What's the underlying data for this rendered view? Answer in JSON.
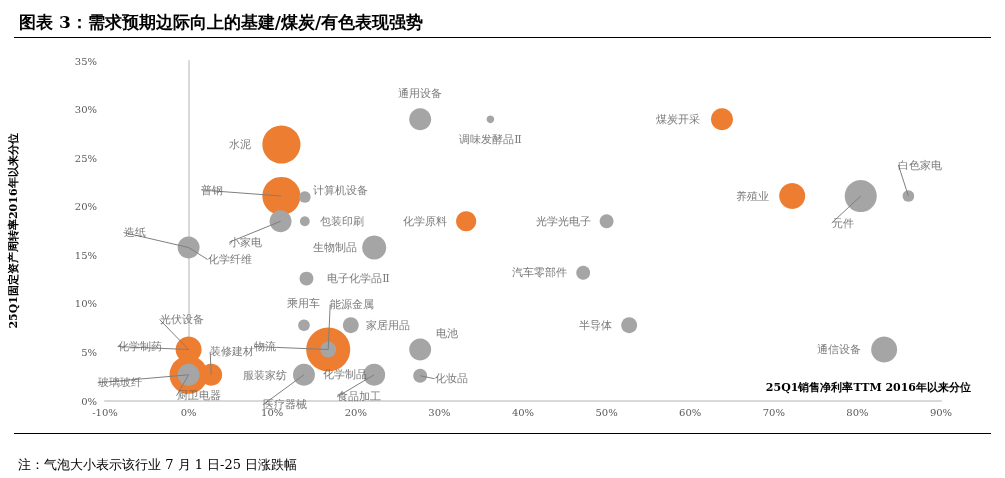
{
  "chart_data": {
    "type": "bubble",
    "title": "图表 3：需求预期边际向上的基建/煤炭/有色表现强势",
    "xlabel": "25Q1销售净利率TTM 2016年以来分位",
    "ylabel": "25Q1固定资产周转率2016年以来分位",
    "xlim": [
      -10,
      90
    ],
    "xticks": [
      {
        "value": -10,
        "label": "-10%"
      },
      {
        "value": 0,
        "label": "0%"
      },
      {
        "value": 10,
        "label": "10%"
      },
      {
        "value": 20,
        "label": "20%"
      },
      {
        "value": 30,
        "label": "30%"
      },
      {
        "value": 40,
        "label": "40%"
      },
      {
        "value": 50,
        "label": "50%"
      },
      {
        "value": 60,
        "label": "60%"
      },
      {
        "value": 70,
        "label": "70%"
      },
      {
        "value": 80,
        "label": "80%"
      },
      {
        "value": 90,
        "label": "90%"
      }
    ],
    "ylim": [
      0,
      35
    ],
    "yticks": [
      {
        "value": 0,
        "label": "0%"
      },
      {
        "value": 5,
        "label": "5%"
      },
      {
        "value": 10,
        "label": "10%"
      },
      {
        "value": 15,
        "label": "15%"
      },
      {
        "value": 20,
        "label": "20%"
      },
      {
        "value": 25,
        "label": "25%"
      },
      {
        "value": 30,
        "label": "30%"
      },
      {
        "value": 35,
        "label": "35%"
      }
    ],
    "series": [
      {
        "color": "#ed7d31",
        "x": [
          11.1,
          11.1,
          16.7,
          33.2,
          63.8,
          72.2,
          0,
          2.7,
          0
        ],
        "values": [
          26.4,
          21.1,
          5.3,
          18.5,
          29.0,
          21.1,
          5.3,
          2.7,
          2.7
        ],
        "sizes": [
          0.75,
          0.75,
          1,
          0.21,
          0.25,
          0.35,
          0.35,
          0.25,
          0.75
        ]
      },
      {
        "color": "#a5a5a5",
        "x": [
          11.0,
          13.9,
          13.9,
          0,
          22.2,
          14.1,
          13.8,
          16.7,
          19.4,
          13.8,
          22.2,
          27.7,
          27.7,
          27.7,
          36.1,
          50.0,
          47.2,
          52.7,
          80.4,
          86.1,
          83.2,
          0
        ],
        "values": [
          18.5,
          21.0,
          18.5,
          15.8,
          15.8,
          12.6,
          7.8,
          5.3,
          7.8,
          2.7,
          2.7,
          5.3,
          2.6,
          29.0,
          29.0,
          18.5,
          13.2,
          7.8,
          21.1,
          21.1,
          5.3,
          2.7
        ],
        "sizes": [
          0.25,
          0.07,
          0.05,
          0.25,
          0.3,
          0.1,
          0.07,
          0.13,
          0.13,
          0.25,
          0.25,
          0.25,
          0.1,
          0.25,
          0.03,
          0.1,
          0.1,
          0.13,
          0.53,
          0.07,
          0.35,
          0.25
        ]
      }
    ],
    "annotations": [
      {
        "text": "水泥",
        "x": 11.1,
        "y": 26.4
      },
      {
        "text": "普钢",
        "x": 11.1,
        "y": 21.1
      },
      {
        "text": "计算机设备",
        "x": 13.9,
        "y": 21.0
      },
      {
        "text": "小家电",
        "x": 11.0,
        "y": 18.5
      },
      {
        "text": "包装印刷",
        "x": 13.9,
        "y": 18.5
      },
      {
        "text": "造纸",
        "x": 0,
        "y": 15.8
      },
      {
        "text": "化学纤维",
        "x": 0,
        "y": 15.8
      },
      {
        "text": "生物制品",
        "x": 22.2,
        "y": 15.8
      },
      {
        "text": "电子化学品Ⅱ",
        "x": 14.1,
        "y": 12.6
      },
      {
        "text": "乘用车",
        "x": 13.8,
        "y": 7.8
      },
      {
        "text": "能源金属",
        "x": 16.7,
        "y": 5.3
      },
      {
        "text": "家居用品",
        "x": 19.4,
        "y": 7.8
      },
      {
        "text": "物流",
        "x": 16.7,
        "y": 5.3
      },
      {
        "text": "服装家纺",
        "x": 13.8,
        "y": 2.7
      },
      {
        "text": "化学制品",
        "x": 13.8,
        "y": 2.7
      },
      {
        "text": "医疗器械",
        "x": 13.8,
        "y": 2.7
      },
      {
        "text": "食品加工",
        "x": 22.2,
        "y": 2.7
      },
      {
        "text": "电池",
        "x": 27.7,
        "y": 5.3
      },
      {
        "text": "化妆品",
        "x": 27.7,
        "y": 2.6
      },
      {
        "text": "通用设备",
        "x": 27.7,
        "y": 29.0
      },
      {
        "text": "调味发酵品Ⅱ",
        "x": 36.1,
        "y": 29.0
      },
      {
        "text": "化学原料",
        "x": 33.2,
        "y": 18.5
      },
      {
        "text": "光学光电子",
        "x": 50.0,
        "y": 18.5
      },
      {
        "text": "汽车零部件",
        "x": 47.2,
        "y": 13.2
      },
      {
        "text": "半导体",
        "x": 52.7,
        "y": 7.8
      },
      {
        "text": "煤炭开采",
        "x": 63.8,
        "y": 29.0
      },
      {
        "text": "养殖业",
        "x": 72.2,
        "y": 21.1
      },
      {
        "text": "元件",
        "x": 80.4,
        "y": 21.1
      },
      {
        "text": "白色家电",
        "x": 86.1,
        "y": 21.1
      },
      {
        "text": "通信设备",
        "x": 83.2,
        "y": 5.3
      },
      {
        "text": "光伏设备",
        "x": 0,
        "y": 5.3
      },
      {
        "text": "化学制药",
        "x": 0,
        "y": 5.3
      },
      {
        "text": "装修建材",
        "x": 2.7,
        "y": 2.7
      },
      {
        "text": "玻璃玻纤",
        "x": 0,
        "y": 2.7
      },
      {
        "text": "厨卫电器",
        "x": 0,
        "y": 2.7
      },
      "注：气泡大小表示该行业 7 月 1 日-25 日涨跌幅"
    ]
  }
}
